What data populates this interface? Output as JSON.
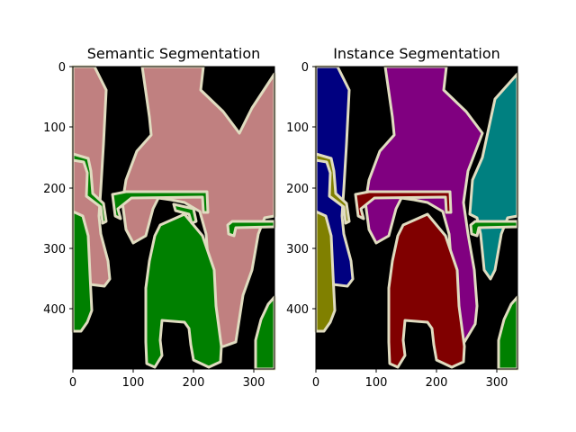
{
  "figure": {
    "panels": [
      {
        "title": "Semantic Segmentation",
        "x_ticks": [
          "0",
          "100",
          "200",
          "300"
        ],
        "y_ticks": [
          "0",
          "100",
          "200",
          "300",
          "400"
        ],
        "colors": {
          "background": "#000000",
          "person": "#c08080",
          "bicycle": "#008000",
          "boundary": "#e0dcc0"
        }
      },
      {
        "title": "Instance Segmentation",
        "x_ticks": [
          "0",
          "100",
          "200",
          "300"
        ],
        "y_ticks": [
          "0",
          "100",
          "200",
          "300",
          "400"
        ],
        "colors": {
          "background": "#000000",
          "person_left": "#000080",
          "person_center": "#800080",
          "person_right": "#008080",
          "bicycle_left": "#808000",
          "bicycle_center": "#800000",
          "bicycle_right": "#008000",
          "boundary": "#e0dcc0"
        }
      }
    ]
  }
}
